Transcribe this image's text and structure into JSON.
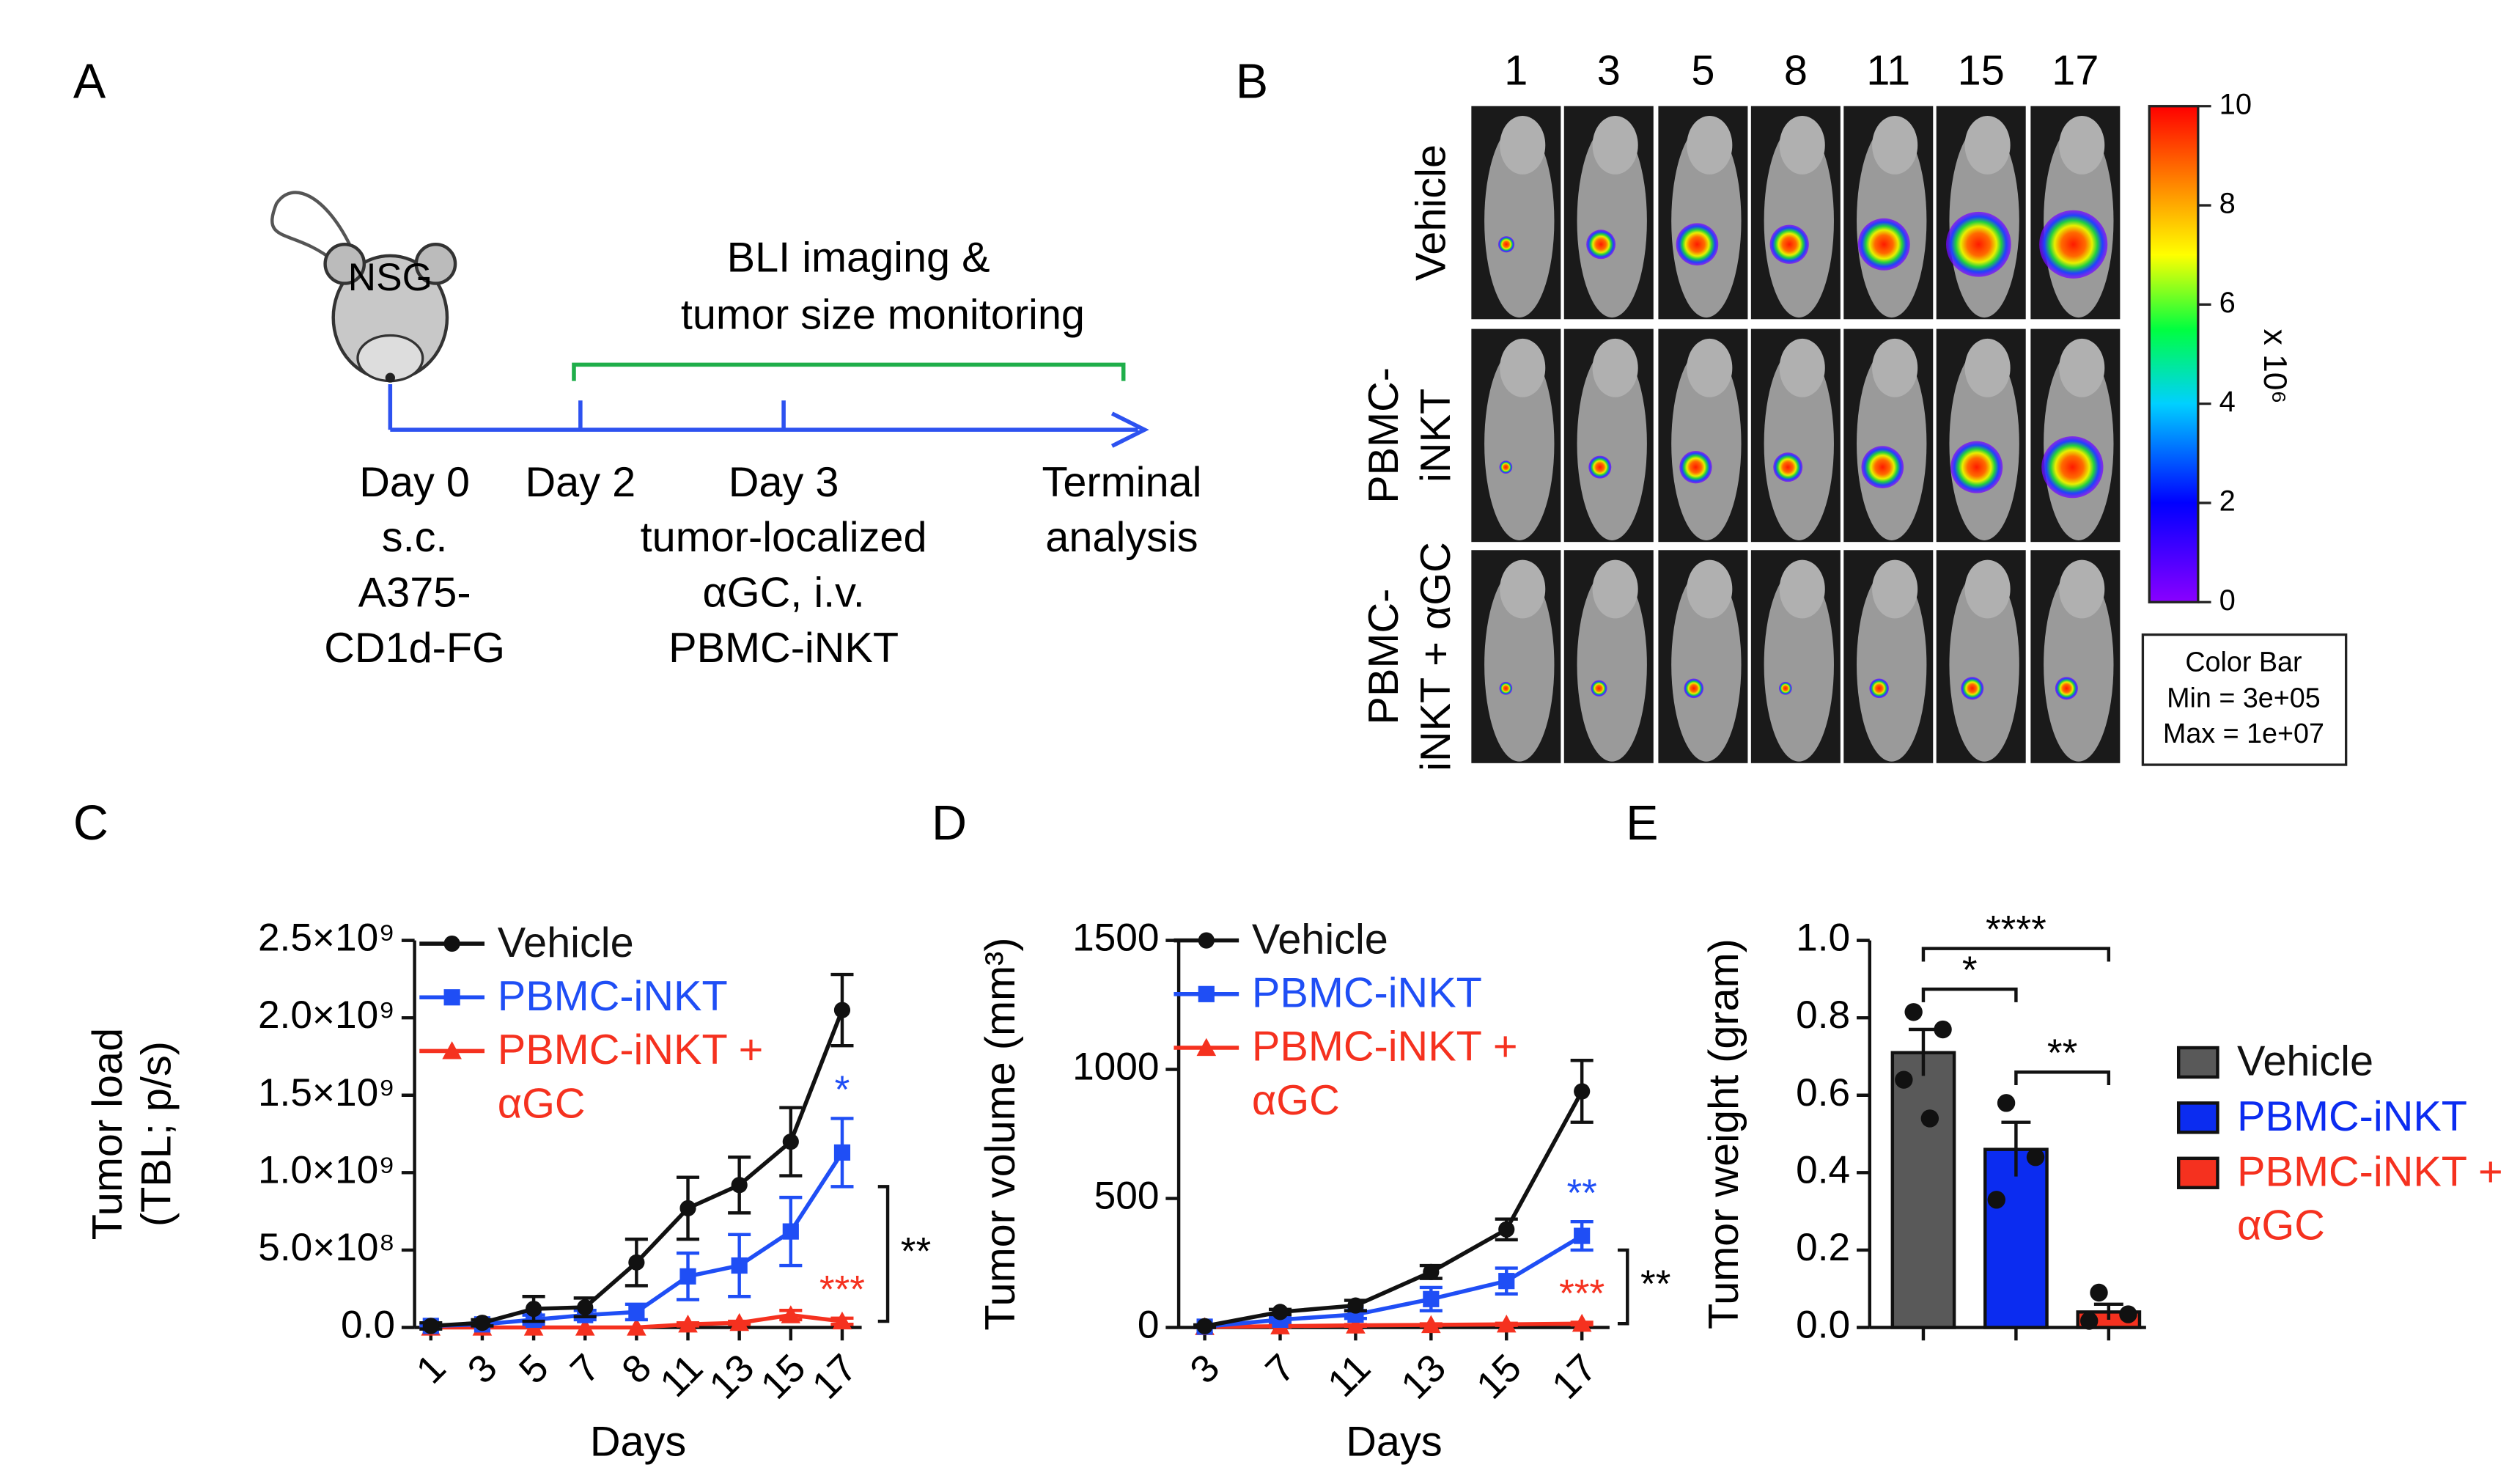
{
  "panel_labels": [
    "A",
    "B",
    "C",
    "D",
    "E"
  ],
  "panel_a": {
    "mouse_label": "NSG",
    "bracket_label": [
      "BLI imaging &",
      "tumor size monitoring"
    ],
    "timepoints": [
      {
        "lines": [
          "Day 0",
          "s.c.",
          "A375-",
          "CD1d-FG"
        ]
      },
      {
        "lines": [
          "Day 2"
        ]
      },
      {
        "lines": [
          "Day 3",
          "tumor-localized",
          "αGC, i.v.",
          "PBMC-iNKT"
        ]
      },
      {
        "lines": [
          "Terminal",
          "analysis"
        ]
      }
    ]
  },
  "panel_b": {
    "days": [
      "1",
      "3",
      "5",
      "8",
      "11",
      "15",
      "17"
    ],
    "groups": [
      [
        "Vehicle"
      ],
      [
        "PBMC-",
        "iNKT"
      ],
      [
        "PBMC-",
        "iNKT + αGC"
      ]
    ],
    "colorbar": {
      "lim": [
        0,
        10
      ],
      "ticks": [
        0,
        2,
        4,
        6,
        8,
        10
      ],
      "unit": "x 10⁶",
      "box": [
        "Color Bar",
        "Min = 3e+05",
        "Max = 1e+07"
      ]
    }
  },
  "chart_data": [
    {
      "type": "line",
      "ylabel": [
        "Tumor load",
        "(TBL; p/s)"
      ],
      "xlabel": "Days",
      "categories": [
        "1",
        "3",
        "5",
        "7",
        "8",
        "11",
        "13",
        "15",
        "17"
      ],
      "ylim": [
        0,
        2500000000
      ],
      "yticks": [
        {
          "value": 0,
          "label": "0.0"
        },
        {
          "value": 500000000,
          "label": "5.0×10⁸"
        },
        {
          "value": 1000000000,
          "label": "1.0×10⁹"
        },
        {
          "value": 1500000000,
          "label": "1.5×10⁹"
        },
        {
          "value": 2000000000,
          "label": "2.0×10⁹"
        },
        {
          "value": 2500000000,
          "label": "2.5×10⁹"
        }
      ],
      "legend": "upper left",
      "bracket_label": "**",
      "series": [
        {
          "name": "Vehicle",
          "color": "#111111",
          "marker": "circle",
          "values": [
            10000000,
            30000000,
            120000000,
            130000000,
            420000000,
            770000000,
            920000000,
            1200000000,
            2050000000
          ],
          "errors": [
            20000000,
            20000000,
            80000000,
            60000000,
            150000000,
            200000000,
            180000000,
            220000000,
            230000000
          ]
        },
        {
          "name": "PBMC-iNKT",
          "color": "#1f4ef5",
          "marker": "square",
          "annotation": "*",
          "values": [
            10000000,
            20000000,
            50000000,
            80000000,
            100000000,
            330000000,
            400000000,
            620000000,
            1130000000
          ],
          "errors": [
            10000000,
            10000000,
            30000000,
            30000000,
            50000000,
            150000000,
            200000000,
            220000000,
            220000000
          ]
        },
        {
          "name": "PBMC-iNKT + αGC",
          "color": "#f5311f",
          "marker": "triangle",
          "annotation": "***",
          "values": [
            0,
            0,
            0,
            0,
            0,
            20000000,
            30000000,
            80000000,
            40000000
          ],
          "errors": [
            0,
            0,
            0,
            0,
            0,
            10000000,
            10000000,
            30000000,
            20000000
          ]
        }
      ]
    },
    {
      "type": "line",
      "ylabel": [
        "Tumor volume (mm³)"
      ],
      "xlabel": "Days",
      "categories": [
        "3",
        "7",
        "11",
        "13",
        "15",
        "17"
      ],
      "ylim": [
        0,
        1500
      ],
      "yticks": [
        0,
        500,
        1000,
        1500
      ],
      "legend": "upper left",
      "bracket_label": "**",
      "series": [
        {
          "name": "Vehicle",
          "color": "#111111",
          "marker": "circle",
          "values": [
            5,
            60,
            85,
            215,
            380,
            915
          ],
          "errors": [
            5,
            10,
            20,
            25,
            40,
            120
          ]
        },
        {
          "name": "PBMC-iNKT",
          "color": "#1f4ef5",
          "marker": "square",
          "annotation": "**",
          "values": [
            3,
            30,
            50,
            110,
            180,
            355
          ],
          "errors": [
            3,
            10,
            15,
            45,
            50,
            55
          ]
        },
        {
          "name": "PBMC-iNKT + αGC",
          "color": "#f5311f",
          "marker": "triangle",
          "annotation": "***",
          "values": [
            2,
            5,
            8,
            10,
            12,
            15
          ],
          "errors": [
            2,
            3,
            3,
            4,
            4,
            5
          ]
        }
      ]
    },
    {
      "type": "bar",
      "ylabel": [
        "Tumor weight (gram)"
      ],
      "ylim": [
        0,
        1
      ],
      "yticks": [
        {
          "value": 0,
          "label": "0.0"
        },
        {
          "value": 0.2,
          "label": "0.2"
        },
        {
          "value": 0.4,
          "label": "0.4"
        },
        {
          "value": 0.6,
          "label": "0.6"
        },
        {
          "value": 0.8,
          "label": "0.8"
        },
        {
          "value": 1,
          "label": "1.0"
        }
      ],
      "legend": "right",
      "significance": [
        "*",
        "****",
        "**"
      ],
      "series": [
        {
          "name": "Vehicle",
          "color": "#595959",
          "values": [
            0.71
          ],
          "errors": [
            0.06
          ],
          "points": [
            0.815,
            0.77,
            0.64,
            0.54
          ]
        },
        {
          "name": "PBMC-iNKT",
          "color": "#0b2cf0",
          "values": [
            0.46
          ],
          "errors": [
            0.07
          ],
          "points": [
            0.58,
            0.44,
            0.33
          ]
        },
        {
          "name": "PBMC-iNKT + αGC",
          "color": "#f5311f",
          "values": [
            0.04
          ],
          "errors": [
            0.02
          ],
          "points": [
            0.09,
            0.034,
            0.017
          ]
        }
      ]
    }
  ]
}
